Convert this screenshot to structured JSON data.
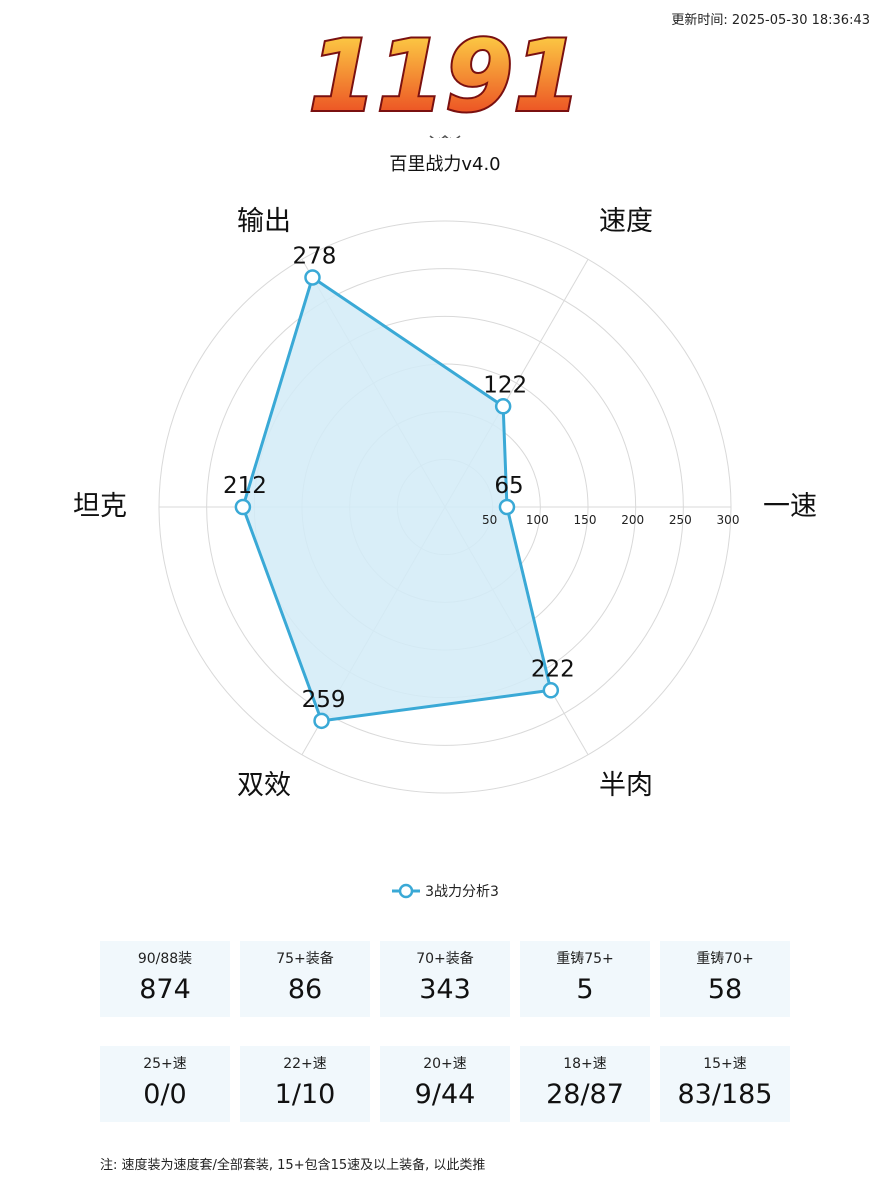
{
  "header": {
    "update_time": "更新时间: 2025-05-30 18:36:43",
    "score": "1191",
    "subtitle": "百里战力v4.0"
  },
  "colors": {
    "series_line": "#3aa9d6",
    "series_fill": "#d2ebf7",
    "grid": "#d9d9d9",
    "score_gradient_top": "#ffe14a",
    "score_gradient_bottom": "#e8341c",
    "score_outline": "#7a1010",
    "stat_box_bg": "#f1f8fc"
  },
  "chart_data": {
    "type": "radar",
    "indicators": [
      "速度",
      "一速",
      "半肉",
      "双效",
      "坦克",
      "输出"
    ],
    "rings": [
      50,
      100,
      150,
      200,
      250,
      300
    ],
    "ring_labels": [
      "50",
      "100",
      "150",
      "200",
      "250",
      "300"
    ],
    "range": [
      0,
      300
    ],
    "series": [
      {
        "name": "3战力分析3",
        "values": [
          122,
          65,
          222,
          259,
          212,
          278
        ],
        "value_labels": [
          "122",
          "65",
          "222",
          "259",
          "212",
          "278"
        ]
      }
    ],
    "legend_position": "bottom-center",
    "grid": true
  },
  "stats": {
    "row1": [
      {
        "label": "90/88装",
        "value": "874"
      },
      {
        "label": "75+装备",
        "value": "86"
      },
      {
        "label": "70+装备",
        "value": "343"
      },
      {
        "label": "重铸75+",
        "value": "5"
      },
      {
        "label": "重铸70+",
        "value": "58"
      }
    ],
    "row2": [
      {
        "label": "25+速",
        "value": "0/0"
      },
      {
        "label": "22+速",
        "value": "1/10"
      },
      {
        "label": "20+速",
        "value": "9/44"
      },
      {
        "label": "18+速",
        "value": "28/87"
      },
      {
        "label": "15+速",
        "value": "83/185"
      }
    ]
  },
  "footer": {
    "note": "注: 速度装为速度套/全部套装, 15+包含15速及以上装备, 以此类推"
  }
}
